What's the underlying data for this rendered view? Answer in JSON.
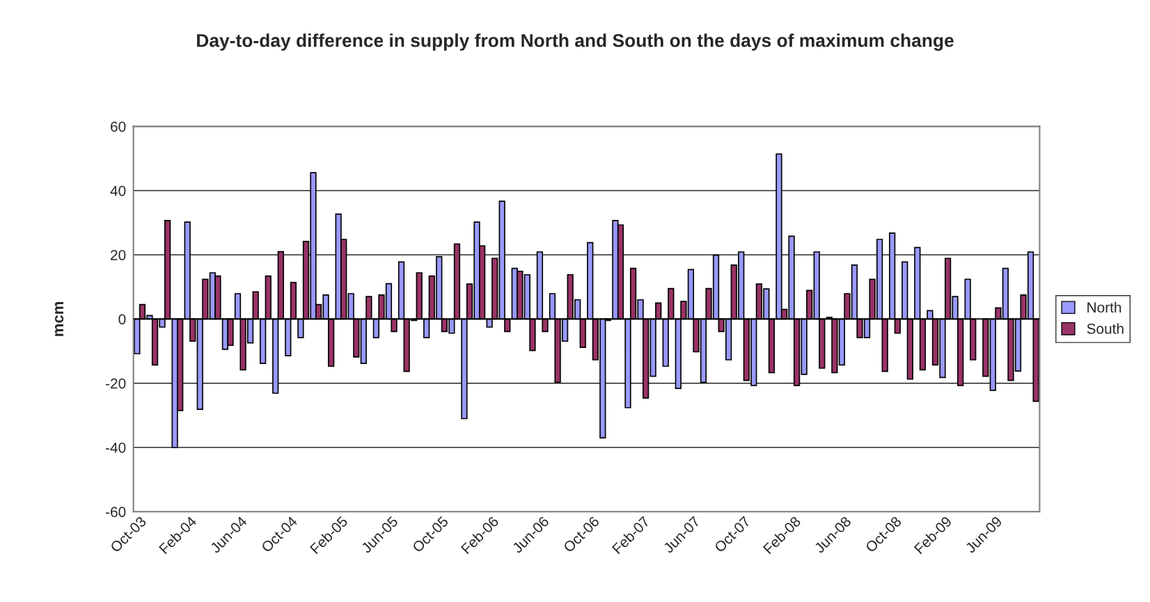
{
  "chart_data": {
    "type": "bar",
    "title": "Day-to-day difference in supply from North and South on the days of maximum change",
    "ylabel": "mcm",
    "categories": [
      "Oct-03",
      null,
      null,
      null,
      "Feb-04",
      null,
      null,
      null,
      "Jun-04",
      null,
      null,
      null,
      "Oct-04",
      null,
      null,
      null,
      "Feb-05",
      null,
      null,
      null,
      "Jun-05",
      null,
      null,
      null,
      "Oct-05",
      null,
      null,
      null,
      "Feb-06",
      null,
      null,
      null,
      "Jun-06",
      null,
      null,
      null,
      "Oct-06",
      null,
      null,
      null,
      "Feb-07",
      null,
      null,
      null,
      "Jun-07",
      null,
      null,
      null,
      "Oct-07",
      null,
      null,
      null,
      "Feb-08",
      null,
      null,
      null,
      "Jun-08",
      null,
      null,
      null,
      "Oct-08",
      null,
      null,
      null,
      "Feb-09",
      null,
      null,
      null,
      "Jun-09",
      null,
      null,
      null
    ],
    "series": [
      {
        "name": "North",
        "color": "#9999ff",
        "values": [
          -10.8,
          1.1,
          -2.5,
          -40,
          30.2,
          -28.1,
          14.4,
          -9.4,
          7.9,
          -7.4,
          -13.8,
          -23.1,
          -11.4,
          -5.8,
          45.6,
          7.5,
          32.7,
          7.9,
          -13.8,
          -5.8,
          11,
          17.8,
          -0.4,
          -5.8,
          19.4,
          -4.4,
          -31,
          30.2,
          -2.5,
          36.7,
          15.8,
          13.8,
          20.9,
          7.9,
          -6.9,
          6.0,
          23.8,
          -37,
          30.7,
          -27.6,
          6.0,
          -17.8,
          -14.7,
          -21.6,
          15.4,
          -19.7,
          19.9,
          -12.7,
          20.9,
          -20.7,
          9.4,
          51.4,
          25.8,
          -17.2,
          20.9,
          0.5,
          -14.3,
          16.8,
          -5.8,
          24.8,
          26.8,
          17.8,
          22.3,
          2.6,
          -18.2,
          7.0,
          12.4,
          null,
          -22.2,
          15.8,
          -16.2,
          20.9
        ]
      },
      {
        "name": "South",
        "color": "#993366",
        "values": [
          4.5,
          -14.3,
          30.7,
          -28.5,
          -6.9,
          12.4,
          13.4,
          -8.2,
          -15.8,
          8.5,
          13.4,
          21,
          11.4,
          24.2,
          4.5,
          -14.7,
          24.8,
          -11.8,
          7.0,
          7.5,
          -3.9,
          -16.3,
          14.4,
          13.4,
          -3.9,
          23.4,
          10.9,
          22.8,
          18.9,
          -3.9,
          14.9,
          -9.8,
          -3.9,
          -19.7,
          13.8,
          -8.8,
          -12.7,
          -0.4,
          29.3,
          15.8,
          -24.6,
          5.0,
          9.5,
          5.5,
          -10.2,
          9.5,
          -3.9,
          16.8,
          -19.1,
          10.9,
          -16.7,
          3.0,
          -20.7,
          8.9,
          -15.3,
          -16.7,
          7.9,
          -5.8,
          12.4,
          -16.3,
          -4.4,
          -18.7,
          -15.8,
          -14.3,
          18.9,
          -20.7,
          -12.7,
          -17.8,
          3.5,
          -19.1,
          7.5,
          -25.6
        ]
      }
    ],
    "ylim": [
      -60,
      60
    ],
    "yticks": [
      -60,
      -40,
      -20,
      0,
      20,
      40,
      60
    ],
    "grid": "y",
    "legend": "right"
  }
}
